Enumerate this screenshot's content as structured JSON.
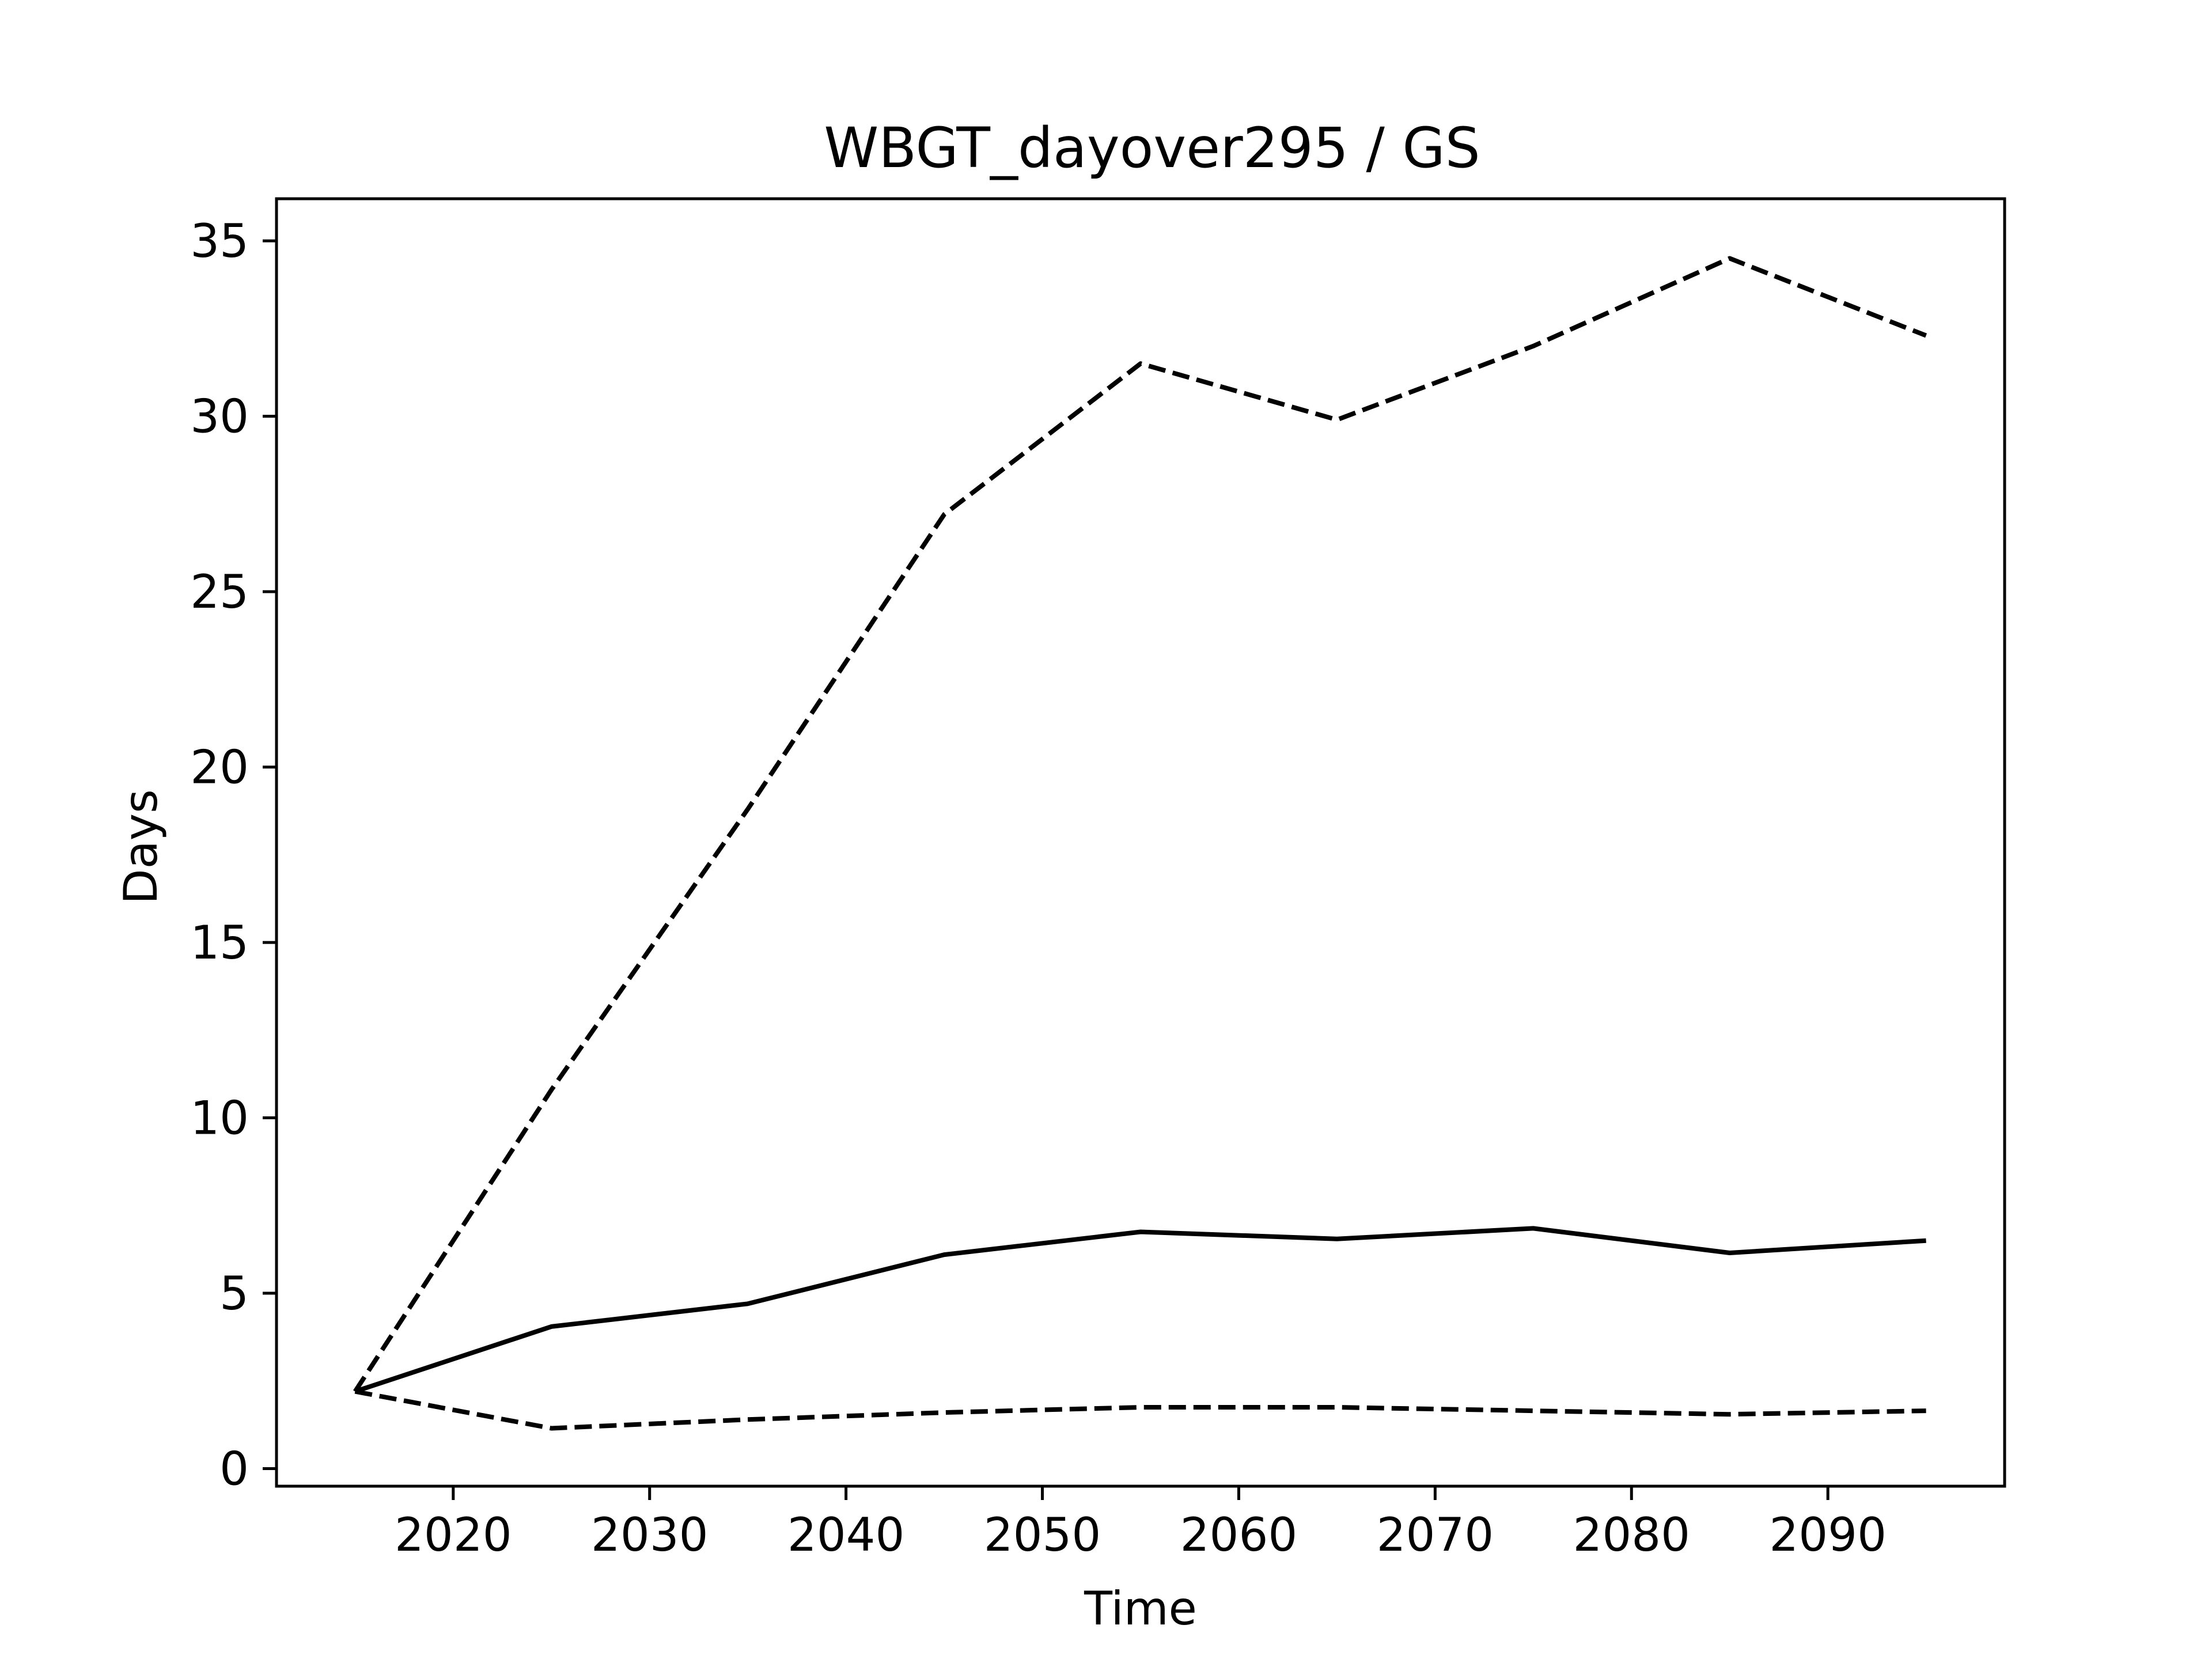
{
  "chart_data": {
    "type": "line",
    "title": "WBGT_dayover295 / GS",
    "xlabel": "Time",
    "ylabel": "Days",
    "xlim": [
      2011,
      2099
    ],
    "ylim": [
      -0.5,
      36.2
    ],
    "x_ticks": [
      2020,
      2030,
      2040,
      2050,
      2060,
      2070,
      2080,
      2090
    ],
    "y_ticks": [
      0,
      5,
      10,
      15,
      20,
      25,
      30,
      35
    ],
    "grid": false,
    "legend": "none",
    "x": [
      2015,
      2025,
      2035,
      2045,
      2055,
      2065,
      2075,
      2085,
      2095
    ],
    "series": [
      {
        "style": "solid",
        "color": "#000000",
        "values": [
          2.2,
          4.05,
          4.7,
          6.1,
          6.75,
          6.55,
          6.85,
          6.15,
          6.5
        ]
      },
      {
        "style": "dashed",
        "color": "#000000",
        "values": [
          2.2,
          10.8,
          18.8,
          27.2,
          31.5,
          29.9,
          32.0,
          34.5,
          32.3
        ]
      },
      {
        "style": "dashed",
        "color": "#000000",
        "values": [
          2.2,
          1.15,
          1.4,
          1.6,
          1.75,
          1.75,
          1.65,
          1.55,
          1.65
        ]
      }
    ]
  }
}
